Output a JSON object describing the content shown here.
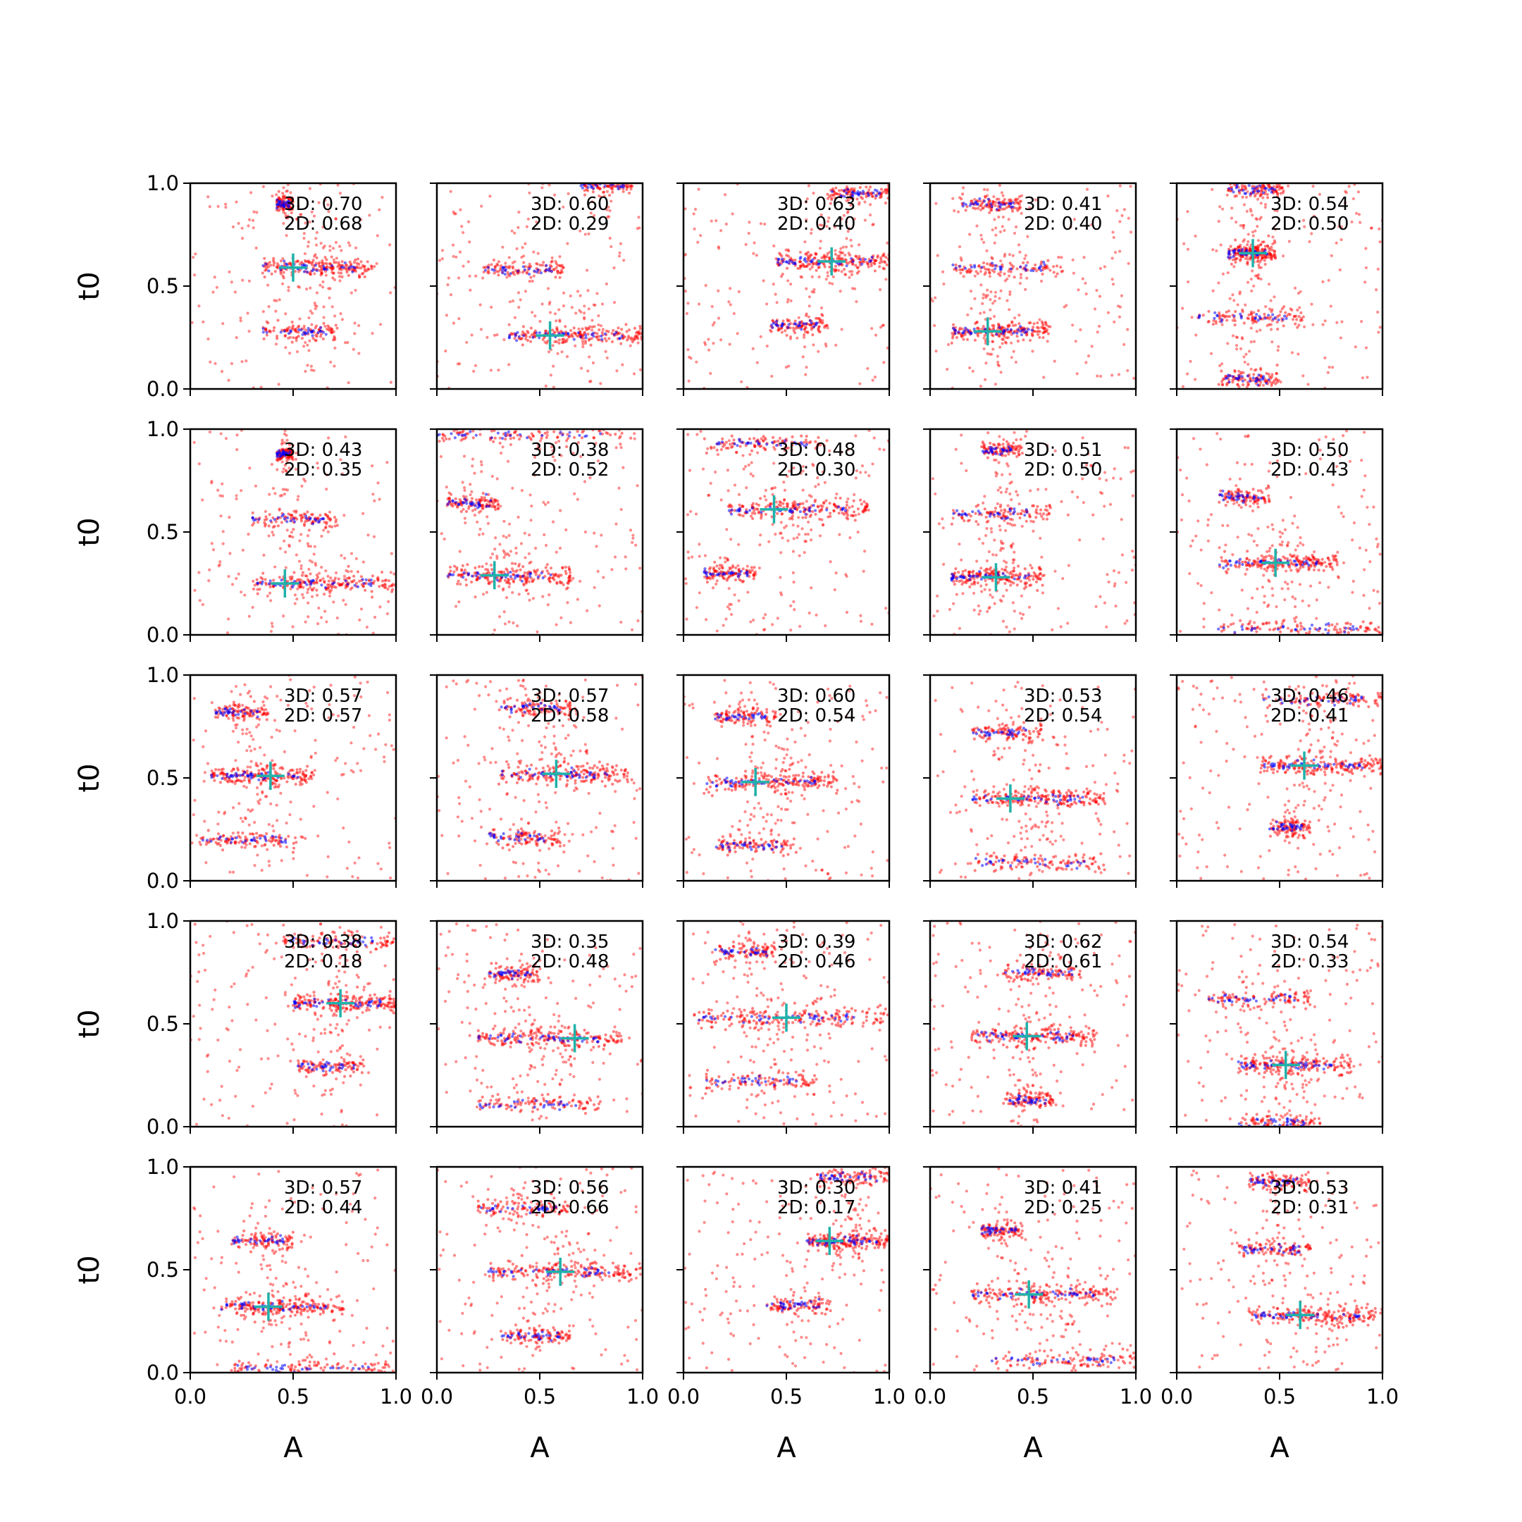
{
  "chart_data": {
    "type": "scatter",
    "layout": "5x5 grid of subplots, shared axes",
    "xlabel": "A",
    "ylabel": "t0",
    "xlim": [
      0,
      1
    ],
    "ylim": [
      0,
      1
    ],
    "xticks": [
      0,
      0.5,
      1
    ],
    "yticks": [
      0,
      0.5,
      1
    ],
    "tick_labels": [
      "0.0",
      "0.5",
      "1.0"
    ],
    "colors": {
      "samples_2d": "#ff0000",
      "samples_3d": "#0000ff",
      "marker": "#20b2aa"
    },
    "panels": [
      {
        "row": 0,
        "col": 0,
        "score_3d": "3D: 0.70",
        "score_2d": "2D: 0.68",
        "marker": [
          0.5,
          0.59
        ],
        "bands": [
          {
            "t0": 0.59,
            "amin": 0.35,
            "amax": 0.9
          },
          {
            "t0": 0.28,
            "amin": 0.35,
            "amax": 0.72
          },
          {
            "t0": 0.9,
            "amin": 0.42,
            "amax": 0.5
          }
        ]
      },
      {
        "row": 0,
        "col": 1,
        "score_3d": "3D: 0.60",
        "score_2d": "2D: 0.29",
        "marker": [
          0.55,
          0.26
        ],
        "bands": [
          {
            "t0": 0.26,
            "amin": 0.35,
            "amax": 1.0
          },
          {
            "t0": 0.58,
            "amin": 0.22,
            "amax": 0.62
          },
          {
            "t0": 0.99,
            "amin": 0.7,
            "amax": 0.95
          }
        ]
      },
      {
        "row": 0,
        "col": 2,
        "score_3d": "3D: 0.63",
        "score_2d": "2D: 0.40",
        "marker": [
          0.72,
          0.62
        ],
        "bands": [
          {
            "t0": 0.62,
            "amin": 0.45,
            "amax": 1.0
          },
          {
            "t0": 0.31,
            "amin": 0.42,
            "amax": 0.7
          },
          {
            "t0": 0.95,
            "amin": 0.7,
            "amax": 1.0
          }
        ]
      },
      {
        "row": 0,
        "col": 3,
        "score_3d": "3D: 0.41",
        "score_2d": "2D: 0.40",
        "marker": [
          0.28,
          0.28
        ],
        "bands": [
          {
            "t0": 0.28,
            "amin": 0.1,
            "amax": 0.58
          },
          {
            "t0": 0.59,
            "amin": 0.1,
            "amax": 0.65
          },
          {
            "t0": 0.9,
            "amin": 0.15,
            "amax": 0.45
          }
        ]
      },
      {
        "row": 0,
        "col": 4,
        "score_3d": "3D: 0.54",
        "score_2d": "2D: 0.50",
        "marker": [
          0.37,
          0.66
        ],
        "bands": [
          {
            "t0": 0.66,
            "amin": 0.25,
            "amax": 0.48
          },
          {
            "t0": 0.35,
            "amin": 0.1,
            "amax": 0.62
          },
          {
            "t0": 0.97,
            "amin": 0.25,
            "amax": 0.52
          },
          {
            "t0": 0.05,
            "amin": 0.2,
            "amax": 0.5
          }
        ]
      },
      {
        "row": 1,
        "col": 0,
        "score_3d": "3D: 0.43",
        "score_2d": "2D: 0.35",
        "marker": [
          0.46,
          0.25
        ],
        "bands": [
          {
            "t0": 0.25,
            "amin": 0.3,
            "amax": 1.0
          },
          {
            "t0": 0.56,
            "amin": 0.3,
            "amax": 0.72
          },
          {
            "t0": 0.88,
            "amin": 0.42,
            "amax": 0.5
          }
        ]
      },
      {
        "row": 1,
        "col": 1,
        "score_3d": "3D: 0.38",
        "score_2d": "2D: 0.52",
        "marker": [
          0.28,
          0.29
        ],
        "bands": [
          {
            "t0": 0.29,
            "amin": 0.05,
            "amax": 0.65
          },
          {
            "t0": 0.64,
            "amin": 0.05,
            "amax": 0.3
          },
          {
            "t0": 0.97,
            "amin": 0.0,
            "amax": 0.95
          }
        ]
      },
      {
        "row": 1,
        "col": 2,
        "score_3d": "3D: 0.48",
        "score_2d": "2D: 0.30",
        "marker": [
          0.44,
          0.61
        ],
        "bands": [
          {
            "t0": 0.61,
            "amin": 0.2,
            "amax": 0.9
          },
          {
            "t0": 0.3,
            "amin": 0.1,
            "amax": 0.35
          },
          {
            "t0": 0.93,
            "amin": 0.1,
            "amax": 0.7
          }
        ]
      },
      {
        "row": 1,
        "col": 3,
        "score_3d": "3D: 0.51",
        "score_2d": "2D: 0.50",
        "marker": [
          0.32,
          0.28
        ],
        "bands": [
          {
            "t0": 0.28,
            "amin": 0.1,
            "amax": 0.55
          },
          {
            "t0": 0.59,
            "amin": 0.1,
            "amax": 0.6
          },
          {
            "t0": 0.9,
            "amin": 0.25,
            "amax": 0.45
          }
        ]
      },
      {
        "row": 1,
        "col": 4,
        "score_3d": "3D: 0.50",
        "score_2d": "2D: 0.43",
        "marker": [
          0.48,
          0.35
        ],
        "bands": [
          {
            "t0": 0.35,
            "amin": 0.2,
            "amax": 0.78
          },
          {
            "t0": 0.67,
            "amin": 0.2,
            "amax": 0.45
          },
          {
            "t0": 0.03,
            "amin": 0.2,
            "amax": 1.0
          }
        ]
      },
      {
        "row": 2,
        "col": 0,
        "score_3d": "3D: 0.57",
        "score_2d": "2D: 0.57",
        "marker": [
          0.39,
          0.51
        ],
        "bands": [
          {
            "t0": 0.51,
            "amin": 0.1,
            "amax": 0.6
          },
          {
            "t0": 0.2,
            "amin": 0.05,
            "amax": 0.55
          },
          {
            "t0": 0.82,
            "amin": 0.12,
            "amax": 0.38
          }
        ]
      },
      {
        "row": 2,
        "col": 1,
        "score_3d": "3D: 0.57",
        "score_2d": "2D: 0.58",
        "marker": [
          0.58,
          0.52
        ],
        "bands": [
          {
            "t0": 0.52,
            "amin": 0.3,
            "amax": 0.95
          },
          {
            "t0": 0.21,
            "amin": 0.25,
            "amax": 0.6
          },
          {
            "t0": 0.84,
            "amin": 0.3,
            "amax": 0.65
          }
        ]
      },
      {
        "row": 2,
        "col": 2,
        "score_3d": "3D: 0.60",
        "score_2d": "2D: 0.54",
        "marker": [
          0.35,
          0.48
        ],
        "bands": [
          {
            "t0": 0.48,
            "amin": 0.1,
            "amax": 0.75
          },
          {
            "t0": 0.17,
            "amin": 0.15,
            "amax": 0.55
          },
          {
            "t0": 0.8,
            "amin": 0.15,
            "amax": 0.45
          }
        ]
      },
      {
        "row": 2,
        "col": 3,
        "score_3d": "3D: 0.53",
        "score_2d": "2D: 0.54",
        "marker": [
          0.39,
          0.4
        ],
        "bands": [
          {
            "t0": 0.4,
            "amin": 0.2,
            "amax": 0.85
          },
          {
            "t0": 0.09,
            "amin": 0.2,
            "amax": 0.85
          },
          {
            "t0": 0.72,
            "amin": 0.2,
            "amax": 0.55
          }
        ]
      },
      {
        "row": 2,
        "col": 4,
        "score_3d": "3D: 0.46",
        "score_2d": "2D: 0.41",
        "marker": [
          0.62,
          0.56
        ],
        "bands": [
          {
            "t0": 0.56,
            "amin": 0.4,
            "amax": 1.0
          },
          {
            "t0": 0.26,
            "amin": 0.45,
            "amax": 0.65
          },
          {
            "t0": 0.88,
            "amin": 0.4,
            "amax": 1.0
          }
        ]
      },
      {
        "row": 3,
        "col": 0,
        "score_3d": "3D: 0.38",
        "score_2d": "2D: 0.18",
        "marker": [
          0.73,
          0.6
        ],
        "bands": [
          {
            "t0": 0.6,
            "amin": 0.5,
            "amax": 1.0
          },
          {
            "t0": 0.29,
            "amin": 0.52,
            "amax": 0.85
          },
          {
            "t0": 0.9,
            "amin": 0.45,
            "amax": 1.0
          }
        ]
      },
      {
        "row": 3,
        "col": 1,
        "score_3d": "3D: 0.35",
        "score_2d": "2D: 0.48",
        "marker": [
          0.67,
          0.43
        ],
        "bands": [
          {
            "t0": 0.43,
            "amin": 0.2,
            "amax": 0.9
          },
          {
            "t0": 0.11,
            "amin": 0.2,
            "amax": 0.8
          },
          {
            "t0": 0.74,
            "amin": 0.25,
            "amax": 0.5
          }
        ]
      },
      {
        "row": 3,
        "col": 2,
        "score_3d": "3D: 0.39",
        "score_2d": "2D: 0.46",
        "marker": [
          0.5,
          0.53
        ],
        "bands": [
          {
            "t0": 0.53,
            "amin": 0.05,
            "amax": 1.0
          },
          {
            "t0": 0.22,
            "amin": 0.1,
            "amax": 0.65
          },
          {
            "t0": 0.85,
            "amin": 0.15,
            "amax": 0.45
          }
        ]
      },
      {
        "row": 3,
        "col": 3,
        "score_3d": "3D: 0.62",
        "score_2d": "2D: 0.61",
        "marker": [
          0.47,
          0.44
        ],
        "bands": [
          {
            "t0": 0.44,
            "amin": 0.2,
            "amax": 0.8
          },
          {
            "t0": 0.75,
            "amin": 0.35,
            "amax": 0.75
          },
          {
            "t0": 0.13,
            "amin": 0.35,
            "amax": 0.6
          }
        ]
      },
      {
        "row": 3,
        "col": 4,
        "score_3d": "3D: 0.54",
        "score_2d": "2D: 0.33",
        "marker": [
          0.53,
          0.3
        ],
        "bands": [
          {
            "t0": 0.3,
            "amin": 0.3,
            "amax": 0.85
          },
          {
            "t0": 0.62,
            "amin": 0.15,
            "amax": 0.65
          },
          {
            "t0": 0.02,
            "amin": 0.3,
            "amax": 0.7
          }
        ]
      },
      {
        "row": 4,
        "col": 0,
        "score_3d": "3D: 0.57",
        "score_2d": "2D: 0.44",
        "marker": [
          0.38,
          0.32
        ],
        "bands": [
          {
            "t0": 0.32,
            "amin": 0.15,
            "amax": 0.75
          },
          {
            "t0": 0.64,
            "amin": 0.2,
            "amax": 0.5
          },
          {
            "t0": 0.02,
            "amin": 0.2,
            "amax": 1.0
          }
        ]
      },
      {
        "row": 4,
        "col": 1,
        "score_3d": "3D: 0.56",
        "score_2d": "2D: 0.66",
        "marker": [
          0.6,
          0.49
        ],
        "bands": [
          {
            "t0": 0.49,
            "amin": 0.25,
            "amax": 1.0
          },
          {
            "t0": 0.18,
            "amin": 0.3,
            "amax": 0.65
          },
          {
            "t0": 0.8,
            "amin": 0.2,
            "amax": 0.65
          }
        ]
      },
      {
        "row": 4,
        "col": 2,
        "score_3d": "3D: 0.30",
        "score_2d": "2D: 0.17",
        "marker": [
          0.71,
          0.64
        ],
        "bands": [
          {
            "t0": 0.64,
            "amin": 0.6,
            "amax": 1.0
          },
          {
            "t0": 0.33,
            "amin": 0.4,
            "amax": 0.72
          },
          {
            "t0": 0.95,
            "amin": 0.65,
            "amax": 1.0
          }
        ]
      },
      {
        "row": 4,
        "col": 3,
        "score_3d": "3D: 0.41",
        "score_2d": "2D: 0.25",
        "marker": [
          0.48,
          0.38
        ],
        "bands": [
          {
            "t0": 0.38,
            "amin": 0.2,
            "amax": 0.9
          },
          {
            "t0": 0.06,
            "amin": 0.3,
            "amax": 1.0
          },
          {
            "t0": 0.69,
            "amin": 0.25,
            "amax": 0.45
          }
        ]
      },
      {
        "row": 4,
        "col": 4,
        "score_3d": "3D: 0.53",
        "score_2d": "2D: 0.31",
        "marker": [
          0.6,
          0.28
        ],
        "bands": [
          {
            "t0": 0.28,
            "amin": 0.35,
            "amax": 1.0
          },
          {
            "t0": 0.6,
            "amin": 0.3,
            "amax": 0.65
          },
          {
            "t0": 0.93,
            "amin": 0.35,
            "amax": 0.65
          }
        ]
      }
    ]
  }
}
